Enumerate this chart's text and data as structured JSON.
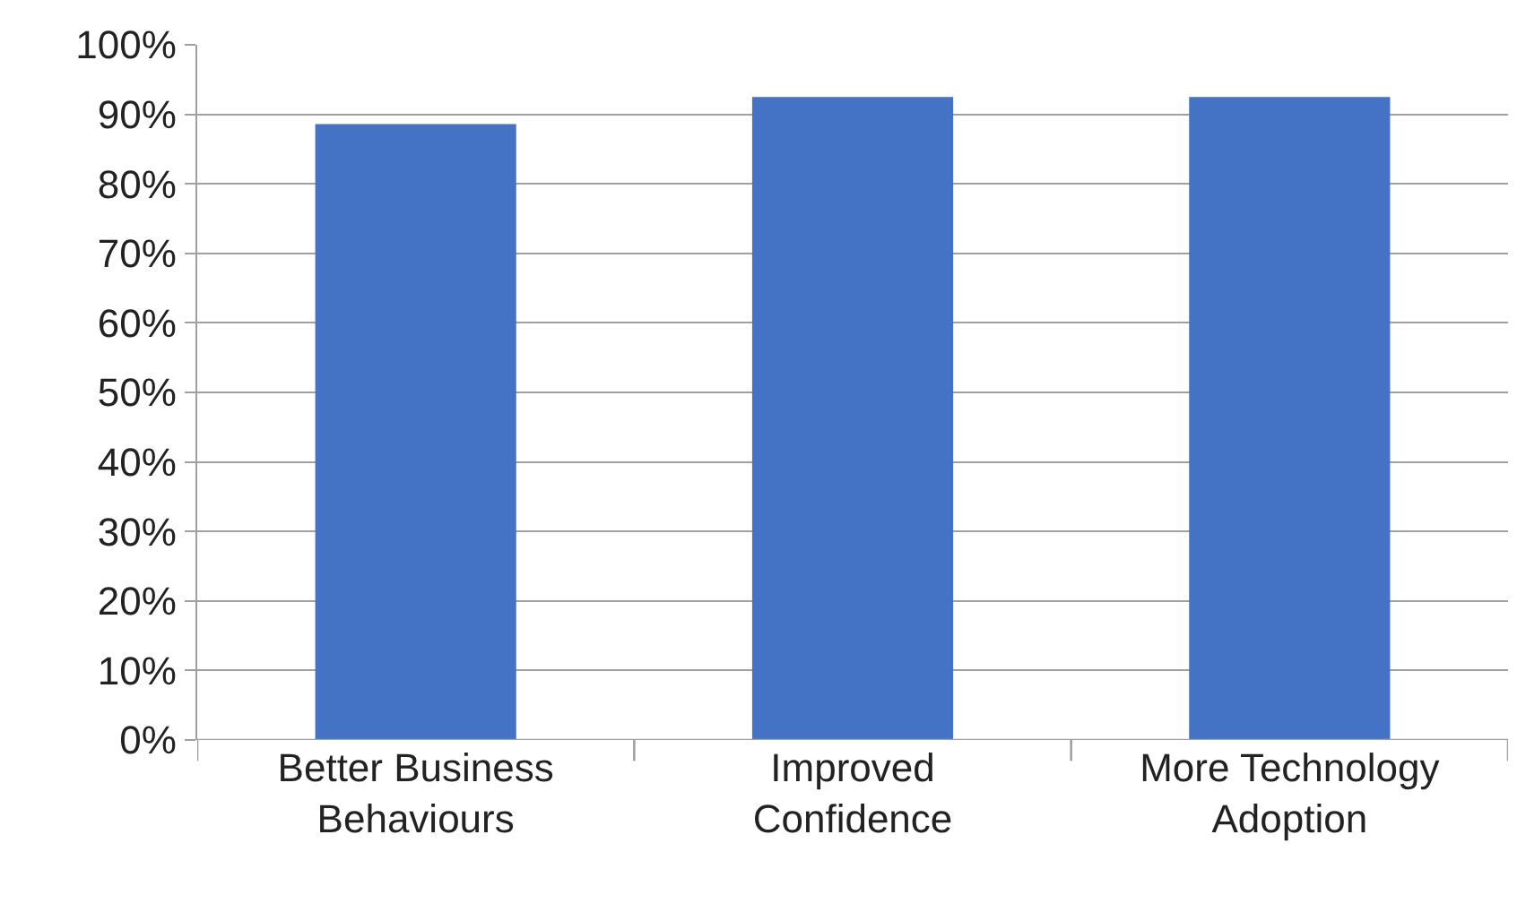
{
  "chart_data": {
    "type": "bar",
    "categories": [
      "Better Business Behaviours",
      "Improved Confidence",
      "More Technology Adoption"
    ],
    "values": [
      88.6,
      92.5,
      92.5
    ],
    "color": "#4472c4",
    "ylim": [
      0,
      100
    ],
    "yticks": [
      {
        "value": 0,
        "label": "0%"
      },
      {
        "value": 10,
        "label": "10%"
      },
      {
        "value": 20,
        "label": "20%"
      },
      {
        "value": 30,
        "label": "30%"
      },
      {
        "value": 40,
        "label": "40%"
      },
      {
        "value": 50,
        "label": "50%"
      },
      {
        "value": 60,
        "label": "60%"
      },
      {
        "value": 70,
        "label": "70%"
      },
      {
        "value": 80,
        "label": "80%"
      },
      {
        "value": 90,
        "label": "90%"
      },
      {
        "value": 100,
        "label": "100%"
      }
    ],
    "grid": "y"
  }
}
